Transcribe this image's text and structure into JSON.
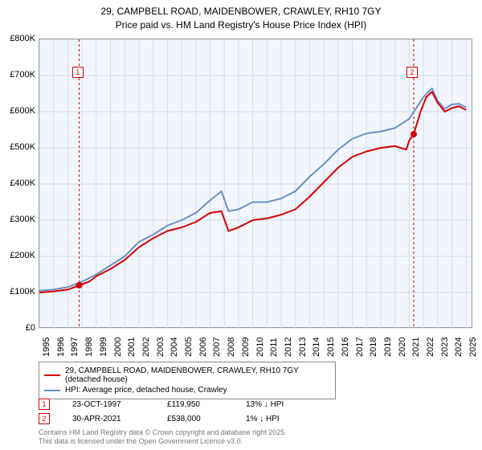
{
  "title_line1": "29, CAMPBELL ROAD, MAIDENBOWER, CRAWLEY, RH10 7GY",
  "title_line2": "Price paid vs. HM Land Registry's House Price Index (HPI)",
  "chart": {
    "type": "line",
    "background_color": "#f2f6fc",
    "grid_color": "#d3dbe8",
    "ylim_min": 0,
    "ylim_max": 800000,
    "ytick_step": 100000,
    "y_labels": [
      "£0",
      "£100K",
      "£200K",
      "£300K",
      "£400K",
      "£500K",
      "£600K",
      "£700K",
      "£800K"
    ],
    "x_labels": [
      "1995",
      "1996",
      "1997",
      "1998",
      "1999",
      "2000",
      "2001",
      "2002",
      "2003",
      "2004",
      "2005",
      "2006",
      "2007",
      "2008",
      "2009",
      "2010",
      "2011",
      "2012",
      "2013",
      "2014",
      "2015",
      "2016",
      "2017",
      "2018",
      "2019",
      "2020",
      "2021",
      "2022",
      "2023",
      "2024",
      "2025"
    ],
    "xmin": 1995,
    "xmax": 2025.5,
    "series": {
      "price_paid": {
        "color": "#d80000",
        "width": 2,
        "values": [
          [
            1995,
            100000
          ],
          [
            1996,
            103000
          ],
          [
            1997,
            108000
          ],
          [
            1997.8,
            119950
          ],
          [
            1998.5,
            130000
          ],
          [
            1999,
            145000
          ],
          [
            2000,
            165000
          ],
          [
            2001,
            190000
          ],
          [
            2002,
            225000
          ],
          [
            2003,
            250000
          ],
          [
            2004,
            270000
          ],
          [
            2005,
            280000
          ],
          [
            2006,
            295000
          ],
          [
            2007,
            320000
          ],
          [
            2007.8,
            325000
          ],
          [
            2008.3,
            270000
          ],
          [
            2009,
            280000
          ],
          [
            2010,
            300000
          ],
          [
            2011,
            305000
          ],
          [
            2012,
            315000
          ],
          [
            2013,
            330000
          ],
          [
            2014,
            365000
          ],
          [
            2015,
            405000
          ],
          [
            2016,
            445000
          ],
          [
            2017,
            475000
          ],
          [
            2018,
            490000
          ],
          [
            2019,
            500000
          ],
          [
            2020,
            505000
          ],
          [
            2020.8,
            495000
          ],
          [
            2021.0,
            520000
          ],
          [
            2021.32,
            538000
          ],
          [
            2021.8,
            600000
          ],
          [
            2022.2,
            640000
          ],
          [
            2022.6,
            655000
          ],
          [
            2023,
            625000
          ],
          [
            2023.5,
            600000
          ],
          [
            2024,
            610000
          ],
          [
            2024.5,
            615000
          ],
          [
            2025,
            605000
          ]
        ]
      },
      "hpi": {
        "color": "#6a8fc5",
        "width": 2,
        "values": [
          [
            1995,
            105000
          ],
          [
            1996,
            108000
          ],
          [
            1997,
            115000
          ],
          [
            1998,
            130000
          ],
          [
            1999,
            150000
          ],
          [
            2000,
            175000
          ],
          [
            2001,
            200000
          ],
          [
            2002,
            240000
          ],
          [
            2003,
            260000
          ],
          [
            2004,
            285000
          ],
          [
            2005,
            300000
          ],
          [
            2006,
            320000
          ],
          [
            2007,
            355000
          ],
          [
            2007.8,
            380000
          ],
          [
            2008.3,
            325000
          ],
          [
            2009,
            330000
          ],
          [
            2010,
            350000
          ],
          [
            2011,
            350000
          ],
          [
            2012,
            360000
          ],
          [
            2013,
            380000
          ],
          [
            2014,
            420000
          ],
          [
            2015,
            455000
          ],
          [
            2016,
            495000
          ],
          [
            2017,
            525000
          ],
          [
            2018,
            540000
          ],
          [
            2019,
            545000
          ],
          [
            2020,
            555000
          ],
          [
            2021,
            580000
          ],
          [
            2022,
            640000
          ],
          [
            2022.6,
            665000
          ],
          [
            2023,
            630000
          ],
          [
            2023.5,
            608000
          ],
          [
            2024,
            620000
          ],
          [
            2024.5,
            622000
          ],
          [
            2025,
            612000
          ]
        ]
      }
    },
    "transactions": [
      {
        "n": "1",
        "year": 1997.8,
        "price": 119950,
        "color": "#d80000"
      },
      {
        "n": "2",
        "year": 2021.32,
        "price": 538000,
        "color": "#d80000"
      }
    ],
    "annotation_boxes": [
      {
        "n": "1",
        "year": 1997.7,
        "y": 710000,
        "border": "#d80000",
        "text_color": "#d80000"
      },
      {
        "n": "2",
        "year": 2021.2,
        "y": 710000,
        "border": "#d80000",
        "text_color": "#d80000"
      }
    ],
    "vlines": [
      {
        "year": 1997.8,
        "color": "#d80000",
        "dash": "3,3"
      },
      {
        "year": 2021.32,
        "color": "#d80000",
        "dash": "3,3"
      }
    ]
  },
  "legend": {
    "items": [
      {
        "label": "29, CAMPBELL ROAD, MAIDENBOWER, CRAWLEY, RH10 7GY (detached house)",
        "color": "#d80000"
      },
      {
        "label": "HPI: Average price, detached house, Crawley",
        "color": "#6a8fc5"
      }
    ]
  },
  "data_rows": [
    {
      "n": "1",
      "date": "23-OCT-1997",
      "price": "£119,950",
      "delta": "13% ↓ HPI",
      "border": "#d80000",
      "text_color": "#d80000"
    },
    {
      "n": "2",
      "date": "30-APR-2021",
      "price": "£538,000",
      "delta": "1% ↓ HPI",
      "border": "#d80000",
      "text_color": "#d80000"
    }
  ],
  "footer_line1": "Contains HM Land Registry data © Crown copyright and database right 2025.",
  "footer_line2": "This data is licensed under the Open Government Licence v3.0."
}
